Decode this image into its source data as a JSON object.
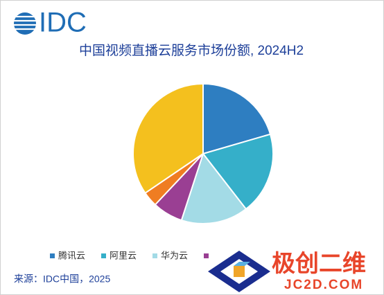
{
  "logo": "IDC",
  "chart_data": {
    "type": "pie",
    "title": "中国视频直播云服务市场份额, 2024H2",
    "categories": [
      "腾讯云",
      "阿里云",
      "华为云",
      null,
      null,
      null
    ],
    "values": [
      20.5,
      19,
      15.5,
      7,
      3.5,
      34.5
    ],
    "colors": [
      "#2e7ec1",
      "#35afc9",
      "#a3dbe6",
      "#9a3f93",
      "#ef7d22",
      "#f4c01e"
    ],
    "source": "来源：IDC中国，2025"
  },
  "watermark": {
    "title": "极创二维",
    "url": "JC2D.COM"
  }
}
